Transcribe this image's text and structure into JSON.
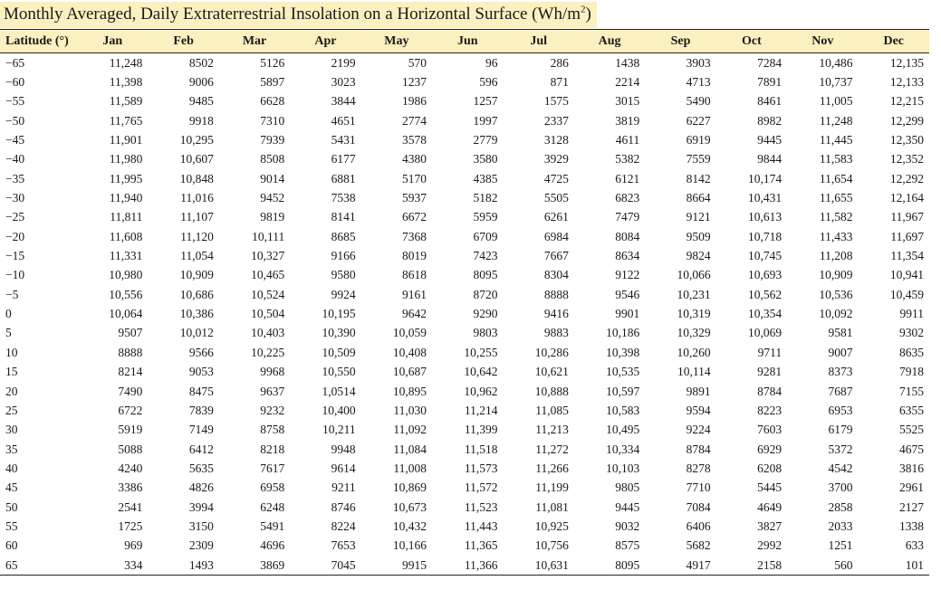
{
  "title": {
    "text": "Monthly Averaged, Daily Extraterrestrial Insolation on a Horizontal Surface (Wh/m",
    "superscript": "2",
    "suffix": ")"
  },
  "columns": [
    "Latitude (°)",
    "Jan",
    "Feb",
    "Mar",
    "Apr",
    "May",
    "Jun",
    "Jul",
    "Aug",
    "Sep",
    "Oct",
    "Nov",
    "Dec"
  ],
  "rows": [
    [
      "−65",
      "11,248",
      "8502",
      "5126",
      "2199",
      "570",
      "96",
      "286",
      "1438",
      "3903",
      "7284",
      "10,486",
      "12,135"
    ],
    [
      "−60",
      "11,398",
      "9006",
      "5897",
      "3023",
      "1237",
      "596",
      "871",
      "2214",
      "4713",
      "7891",
      "10,737",
      "12,133"
    ],
    [
      "−55",
      "11,589",
      "9485",
      "6628",
      "3844",
      "1986",
      "1257",
      "1575",
      "3015",
      "5490",
      "8461",
      "11,005",
      "12,215"
    ],
    [
      "−50",
      "11,765",
      "9918",
      "7310",
      "4651",
      "2774",
      "1997",
      "2337",
      "3819",
      "6227",
      "8982",
      "11,248",
      "12,299"
    ],
    [
      "−45",
      "11,901",
      "10,295",
      "7939",
      "5431",
      "3578",
      "2779",
      "3128",
      "4611",
      "6919",
      "9445",
      "11,445",
      "12,350"
    ],
    [
      "−40",
      "11,980",
      "10,607",
      "8508",
      "6177",
      "4380",
      "3580",
      "3929",
      "5382",
      "7559",
      "9844",
      "11,583",
      "12,352"
    ],
    [
      "−35",
      "11,995",
      "10,848",
      "9014",
      "6881",
      "5170",
      "4385",
      "4725",
      "6121",
      "8142",
      "10,174",
      "11,654",
      "12,292"
    ],
    [
      "−30",
      "11,940",
      "11,016",
      "9452",
      "7538",
      "5937",
      "5182",
      "5505",
      "6823",
      "8664",
      "10,431",
      "11,655",
      "12,164"
    ],
    [
      "−25",
      "11,811",
      "11,107",
      "9819",
      "8141",
      "6672",
      "5959",
      "6261",
      "7479",
      "9121",
      "10,613",
      "11,582",
      "11,967"
    ],
    [
      "−20",
      "11,608",
      "11,120",
      "10,111",
      "8685",
      "7368",
      "6709",
      "6984",
      "8084",
      "9509",
      "10,718",
      "11,433",
      "11,697"
    ],
    [
      "−15",
      "11,331",
      "11,054",
      "10,327",
      "9166",
      "8019",
      "7423",
      "7667",
      "8634",
      "9824",
      "10,745",
      "11,208",
      "11,354"
    ],
    [
      "−10",
      "10,980",
      "10,909",
      "10,465",
      "9580",
      "8618",
      "8095",
      "8304",
      "9122",
      "10,066",
      "10,693",
      "10,909",
      "10,941"
    ],
    [
      "−5",
      "10,556",
      "10,686",
      "10,524",
      "9924",
      "9161",
      "8720",
      "8888",
      "9546",
      "10,231",
      "10,562",
      "10,536",
      "10,459"
    ],
    [
      "0",
      "10,064",
      "10,386",
      "10,504",
      "10,195",
      "9642",
      "9290",
      "9416",
      "9901",
      "10,319",
      "10,354",
      "10,092",
      "9911"
    ],
    [
      "5",
      "9507",
      "10,012",
      "10,403",
      "10,390",
      "10,059",
      "9803",
      "9883",
      "10,186",
      "10,329",
      "10,069",
      "9581",
      "9302"
    ],
    [
      "10",
      "8888",
      "9566",
      "10,225",
      "10,509",
      "10,408",
      "10,255",
      "10,286",
      "10,398",
      "10,260",
      "9711",
      "9007",
      "8635"
    ],
    [
      "15",
      "8214",
      "9053",
      "9968",
      "10,550",
      "10,687",
      "10,642",
      "10,621",
      "10,535",
      "10,114",
      "9281",
      "8373",
      "7918"
    ],
    [
      "20",
      "7490",
      "8475",
      "9637",
      "1,0514",
      "10,895",
      "10,962",
      "10,888",
      "10,597",
      "9891",
      "8784",
      "7687",
      "7155"
    ],
    [
      "25",
      "6722",
      "7839",
      "9232",
      "10,400",
      "11,030",
      "11,214",
      "11,085",
      "10,583",
      "9594",
      "8223",
      "6953",
      "6355"
    ],
    [
      "30",
      "5919",
      "7149",
      "8758",
      "10,211",
      "11,092",
      "11,399",
      "11,213",
      "10,495",
      "9224",
      "7603",
      "6179",
      "5525"
    ],
    [
      "35",
      "5088",
      "6412",
      "8218",
      "9948",
      "11,084",
      "11,518",
      "11,272",
      "10,334",
      "8784",
      "6929",
      "5372",
      "4675"
    ],
    [
      "40",
      "4240",
      "5635",
      "7617",
      "9614",
      "11,008",
      "11,573",
      "11,266",
      "10,103",
      "8278",
      "6208",
      "4542",
      "3816"
    ],
    [
      "45",
      "3386",
      "4826",
      "6958",
      "9211",
      "10,869",
      "11,572",
      "11,199",
      "9805",
      "7710",
      "5445",
      "3700",
      "2961"
    ],
    [
      "50",
      "2541",
      "3994",
      "6248",
      "8746",
      "10,673",
      "11,523",
      "11,081",
      "9445",
      "7084",
      "4649",
      "2858",
      "2127"
    ],
    [
      "55",
      "1725",
      "3150",
      "5491",
      "8224",
      "10,432",
      "11,443",
      "10,925",
      "9032",
      "6406",
      "3827",
      "2033",
      "1338"
    ],
    [
      "60",
      "969",
      "2309",
      "4696",
      "7653",
      "10,166",
      "11,365",
      "10,756",
      "8575",
      "5682",
      "2992",
      "1251",
      "633"
    ],
    [
      "65",
      "334",
      "1493",
      "3869",
      "7045",
      "9915",
      "11,366",
      "10,631",
      "8095",
      "4917",
      "2158",
      "560",
      "101"
    ]
  ],
  "colors": {
    "header_highlight": "#fbf0c0",
    "rule": "#222222"
  }
}
